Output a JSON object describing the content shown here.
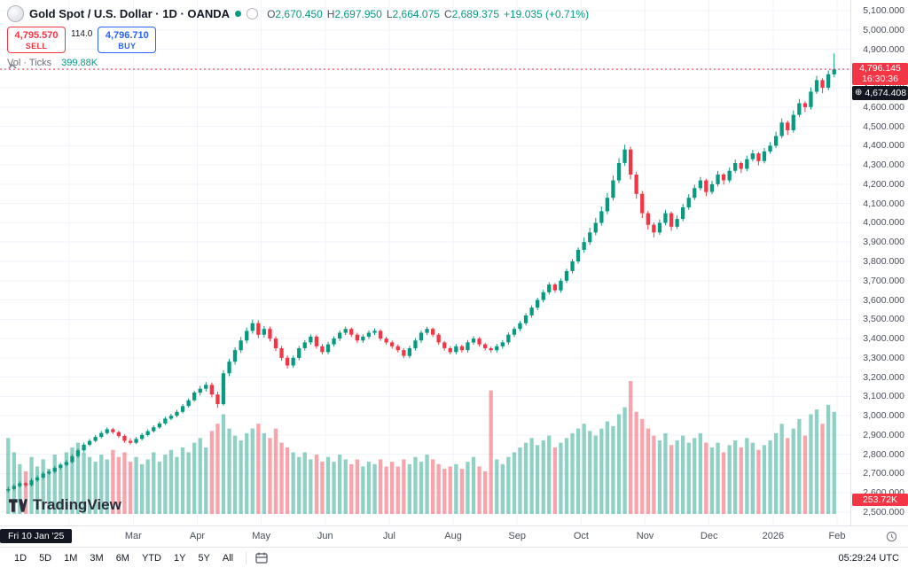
{
  "header": {
    "title": "Gold Spot / U.S. Dollar · 1D · OANDA",
    "ohlc": {
      "open_label": "O",
      "open": "2,670.450",
      "high_label": "H",
      "high": "2,697.950",
      "low_label": "L",
      "low": "2,664.075",
      "close_label": "C",
      "close": "2,689.375",
      "change": "+19.035 (+0.71%)"
    },
    "order_panel": {
      "sell_price": "4,795.570",
      "sell_label": "SELL",
      "spread": "114.0",
      "buy_price": "4,796.710",
      "buy_label": "BUY"
    },
    "volume_legend": {
      "label": "Vol · Ticks",
      "value": "399.88K"
    }
  },
  "watermark": {
    "text": "TradingView"
  },
  "badges": {
    "current_price": "4,796.145",
    "countdown": "16:30:36",
    "crosshair_price": "4,674.408",
    "volume_value": "253.72K",
    "date": "Fri 10 Jan '25"
  },
  "toolbar": {
    "ranges": [
      "1D",
      "5D",
      "1M",
      "3M",
      "6M",
      "YTD",
      "1Y",
      "5Y",
      "All"
    ],
    "utc_time": "05:29:24 UTC"
  },
  "colors": {
    "up": "#089981",
    "down": "#f23645",
    "buy_blue": "#2962ff",
    "sell_red": "#f23645",
    "grid": "#f0f3fa",
    "axis_text": "#4a4e59",
    "badge_dark": "#131722",
    "current_line": "#f23645"
  },
  "chart_data": {
    "type": "candlestick",
    "symbol": "Gold Spot / U.S. Dollar (XAU/USD)",
    "exchange": "OANDA",
    "interval": "1D",
    "y_range": [
      2500,
      5100
    ],
    "y_tick_step": 100,
    "current_price": 4796.145,
    "crosshair_price": 4674.408,
    "candles_per_month": 11,
    "x_labels": [
      [
        "Mar",
        22
      ],
      [
        "Apr",
        33
      ],
      [
        "May",
        44
      ],
      [
        "Jun",
        55
      ],
      [
        "Jul",
        66
      ],
      [
        "Aug",
        77
      ],
      [
        "Sep",
        88
      ],
      [
        "Oct",
        99
      ],
      [
        "Nov",
        110
      ],
      [
        "Dec",
        121
      ],
      [
        "2026",
        132
      ],
      [
        "Feb",
        143
      ]
    ],
    "volume_scale_max": 560,
    "candles": [
      [
        2612,
        2632,
        2602,
        2620
      ],
      [
        2620,
        2645,
        2612,
        2635
      ],
      [
        2635,
        2660,
        2627,
        2650
      ],
      [
        2650,
        2658,
        2630,
        2640
      ],
      [
        2640,
        2675,
        2633,
        2665
      ],
      [
        2665,
        2690,
        2657,
        2680
      ],
      [
        2680,
        2710,
        2672,
        2700
      ],
      [
        2700,
        2720,
        2692,
        2710
      ],
      [
        2710,
        2740,
        2702,
        2730
      ],
      [
        2730,
        2755,
        2722,
        2745
      ],
      [
        2745,
        2770,
        2737,
        2760
      ],
      [
        2760,
        2800,
        2752,
        2790
      ],
      [
        2790,
        2830,
        2782,
        2820
      ],
      [
        2820,
        2860,
        2812,
        2850
      ],
      [
        2850,
        2880,
        2842,
        2870
      ],
      [
        2870,
        2900,
        2862,
        2890
      ],
      [
        2890,
        2920,
        2882,
        2910
      ],
      [
        2910,
        2940,
        2902,
        2930
      ],
      [
        2930,
        2938,
        2905,
        2915
      ],
      [
        2915,
        2923,
        2885,
        2895
      ],
      [
        2895,
        2903,
        2860,
        2870
      ],
      [
        2870,
        2882,
        2850,
        2860
      ],
      [
        2860,
        2890,
        2852,
        2880
      ],
      [
        2880,
        2910,
        2872,
        2900
      ],
      [
        2900,
        2930,
        2892,
        2920
      ],
      [
        2920,
        2950,
        2912,
        2940
      ],
      [
        2940,
        2970,
        2932,
        2960
      ],
      [
        2960,
        2995,
        2952,
        2985
      ],
      [
        2985,
        3010,
        2977,
        3000
      ],
      [
        3000,
        3030,
        2992,
        3020
      ],
      [
        3020,
        3060,
        3012,
        3050
      ],
      [
        3050,
        3090,
        3042,
        3080
      ],
      [
        3080,
        3130,
        3072,
        3120
      ],
      [
        3120,
        3155,
        3105,
        3140
      ],
      [
        3140,
        3175,
        3125,
        3160
      ],
      [
        3160,
        3172,
        3095,
        3110
      ],
      [
        3110,
        3125,
        3040,
        3060
      ],
      [
        3060,
        3235,
        3052,
        3220
      ],
      [
        3220,
        3295,
        3205,
        3280
      ],
      [
        3280,
        3355,
        3265,
        3340
      ],
      [
        3340,
        3408,
        3325,
        3390
      ],
      [
        3390,
        3458,
        3375,
        3440
      ],
      [
        3440,
        3498,
        3425,
        3480
      ],
      [
        3480,
        3495,
        3402,
        3420
      ],
      [
        3420,
        3465,
        3405,
        3450
      ],
      [
        3450,
        3462,
        3385,
        3400
      ],
      [
        3400,
        3412,
        3335,
        3350
      ],
      [
        3350,
        3362,
        3285,
        3300
      ],
      [
        3300,
        3312,
        3245,
        3260
      ],
      [
        3260,
        3312,
        3248,
        3300
      ],
      [
        3300,
        3362,
        3288,
        3350
      ],
      [
        3350,
        3392,
        3338,
        3380
      ],
      [
        3380,
        3422,
        3368,
        3410
      ],
      [
        3410,
        3420,
        3348,
        3360
      ],
      [
        3360,
        3372,
        3318,
        3330
      ],
      [
        3330,
        3382,
        3318,
        3370
      ],
      [
        3370,
        3412,
        3358,
        3400
      ],
      [
        3400,
        3442,
        3388,
        3430
      ],
      [
        3430,
        3462,
        3418,
        3450
      ],
      [
        3450,
        3458,
        3408,
        3420
      ],
      [
        3420,
        3430,
        3378,
        3390
      ],
      [
        3390,
        3422,
        3378,
        3410
      ],
      [
        3410,
        3442,
        3398,
        3430
      ],
      [
        3430,
        3452,
        3418,
        3440
      ],
      [
        3440,
        3448,
        3388,
        3400
      ],
      [
        3400,
        3410,
        3368,
        3380
      ],
      [
        3380,
        3390,
        3348,
        3360
      ],
      [
        3360,
        3370,
        3328,
        3340
      ],
      [
        3340,
        3350,
        3298,
        3310
      ],
      [
        3310,
        3362,
        3298,
        3350
      ],
      [
        3350,
        3402,
        3338,
        3390
      ],
      [
        3390,
        3442,
        3378,
        3430
      ],
      [
        3430,
        3462,
        3418,
        3450
      ],
      [
        3450,
        3458,
        3408,
        3420
      ],
      [
        3420,
        3428,
        3368,
        3380
      ],
      [
        3380,
        3388,
        3338,
        3350
      ],
      [
        3350,
        3360,
        3318,
        3330
      ],
      [
        3330,
        3372,
        3318,
        3360
      ],
      [
        3360,
        3368,
        3328,
        3340
      ],
      [
        3340,
        3392,
        3328,
        3380
      ],
      [
        3380,
        3412,
        3368,
        3400
      ],
      [
        3400,
        3408,
        3358,
        3370
      ],
      [
        3370,
        3378,
        3338,
        3350
      ],
      [
        3350,
        3358,
        3328,
        3340
      ],
      [
        3340,
        3372,
        3328,
        3360
      ],
      [
        3360,
        3392,
        3348,
        3380
      ],
      [
        3380,
        3432,
        3368,
        3420
      ],
      [
        3420,
        3462,
        3408,
        3450
      ],
      [
        3450,
        3492,
        3438,
        3480
      ],
      [
        3480,
        3532,
        3468,
        3520
      ],
      [
        3520,
        3572,
        3508,
        3560
      ],
      [
        3560,
        3612,
        3548,
        3600
      ],
      [
        3600,
        3652,
        3588,
        3640
      ],
      [
        3640,
        3692,
        3628,
        3680
      ],
      [
        3680,
        3688,
        3638,
        3650
      ],
      [
        3650,
        3712,
        3638,
        3700
      ],
      [
        3700,
        3762,
        3688,
        3750
      ],
      [
        3750,
        3812,
        3738,
        3800
      ],
      [
        3800,
        3872,
        3788,
        3860
      ],
      [
        3860,
        3925,
        3845,
        3900
      ],
      [
        3900,
        3975,
        3885,
        3950
      ],
      [
        3950,
        4025,
        3935,
        4000
      ],
      [
        4000,
        4085,
        3985,
        4060
      ],
      [
        4060,
        4155,
        4045,
        4130
      ],
      [
        4130,
        4245,
        4115,
        4220
      ],
      [
        4220,
        4335,
        4205,
        4310
      ],
      [
        4310,
        4405,
        4295,
        4380
      ],
      [
        4380,
        4395,
        4225,
        4250
      ],
      [
        4250,
        4265,
        4125,
        4150
      ],
      [
        4150,
        4165,
        4025,
        4050
      ],
      [
        4050,
        4062,
        3965,
        3990
      ],
      [
        3990,
        4002,
        3925,
        3950
      ],
      [
        3950,
        4018,
        3938,
        4000
      ],
      [
        4000,
        4068,
        3988,
        4050
      ],
      [
        4050,
        4058,
        3958,
        3980
      ],
      [
        3980,
        4038,
        3968,
        4020
      ],
      [
        4020,
        4098,
        4008,
        4080
      ],
      [
        4080,
        4148,
        4068,
        4130
      ],
      [
        4130,
        4198,
        4118,
        4180
      ],
      [
        4180,
        4238,
        4168,
        4220
      ],
      [
        4220,
        4228,
        4138,
        4160
      ],
      [
        4160,
        4218,
        4148,
        4200
      ],
      [
        4200,
        4268,
        4188,
        4250
      ],
      [
        4250,
        4258,
        4198,
        4220
      ],
      [
        4220,
        4288,
        4208,
        4270
      ],
      [
        4270,
        4328,
        4258,
        4310
      ],
      [
        4310,
        4318,
        4258,
        4280
      ],
      [
        4280,
        4348,
        4268,
        4330
      ],
      [
        4330,
        4378,
        4318,
        4360
      ],
      [
        4360,
        4368,
        4298,
        4320
      ],
      [
        4320,
        4388,
        4308,
        4370
      ],
      [
        4370,
        4418,
        4358,
        4400
      ],
      [
        4400,
        4472,
        4388,
        4450
      ],
      [
        4450,
        4542,
        4438,
        4520
      ],
      [
        4520,
        4530,
        4455,
        4480
      ],
      [
        4480,
        4582,
        4468,
        4560
      ],
      [
        4560,
        4642,
        4548,
        4620
      ],
      [
        4620,
        4630,
        4575,
        4600
      ],
      [
        4600,
        4702,
        4588,
        4680
      ],
      [
        4680,
        4762,
        4668,
        4740
      ],
      [
        4740,
        4750,
        4672,
        4700
      ],
      [
        4700,
        4790,
        4688,
        4770
      ],
      [
        4770,
        4878,
        4755,
        4796
      ]
    ],
    "volumes": [
      320,
      260,
      210,
      180,
      240,
      200,
      230,
      190,
      250,
      210,
      260,
      280,
      300,
      260,
      240,
      220,
      250,
      230,
      270,
      240,
      260,
      220,
      240,
      210,
      230,
      260,
      220,
      250,
      270,
      240,
      280,
      260,
      300,
      320,
      280,
      350,
      380,
      420,
      360,
      330,
      310,
      340,
      360,
      380,
      340,
      320,
      360,
      300,
      280,
      260,
      240,
      260,
      230,
      250,
      220,
      240,
      220,
      250,
      230,
      210,
      230,
      200,
      220,
      210,
      230,
      200,
      220,
      200,
      230,
      210,
      240,
      220,
      250,
      230,
      210,
      190,
      200,
      210,
      190,
      220,
      240,
      200,
      180,
      520,
      230,
      210,
      240,
      260,
      280,
      300,
      320,
      290,
      310,
      330,
      280,
      300,
      320,
      340,
      360,
      380,
      350,
      330,
      360,
      390,
      370,
      420,
      450,
      560,
      430,
      400,
      360,
      330,
      310,
      340,
      290,
      310,
      330,
      300,
      320,
      340,
      300,
      280,
      300,
      260,
      290,
      310,
      280,
      320,
      300,
      270,
      290,
      310,
      340,
      380,
      320,
      360,
      400,
      330,
      420,
      440,
      380,
      460,
      430
    ]
  }
}
